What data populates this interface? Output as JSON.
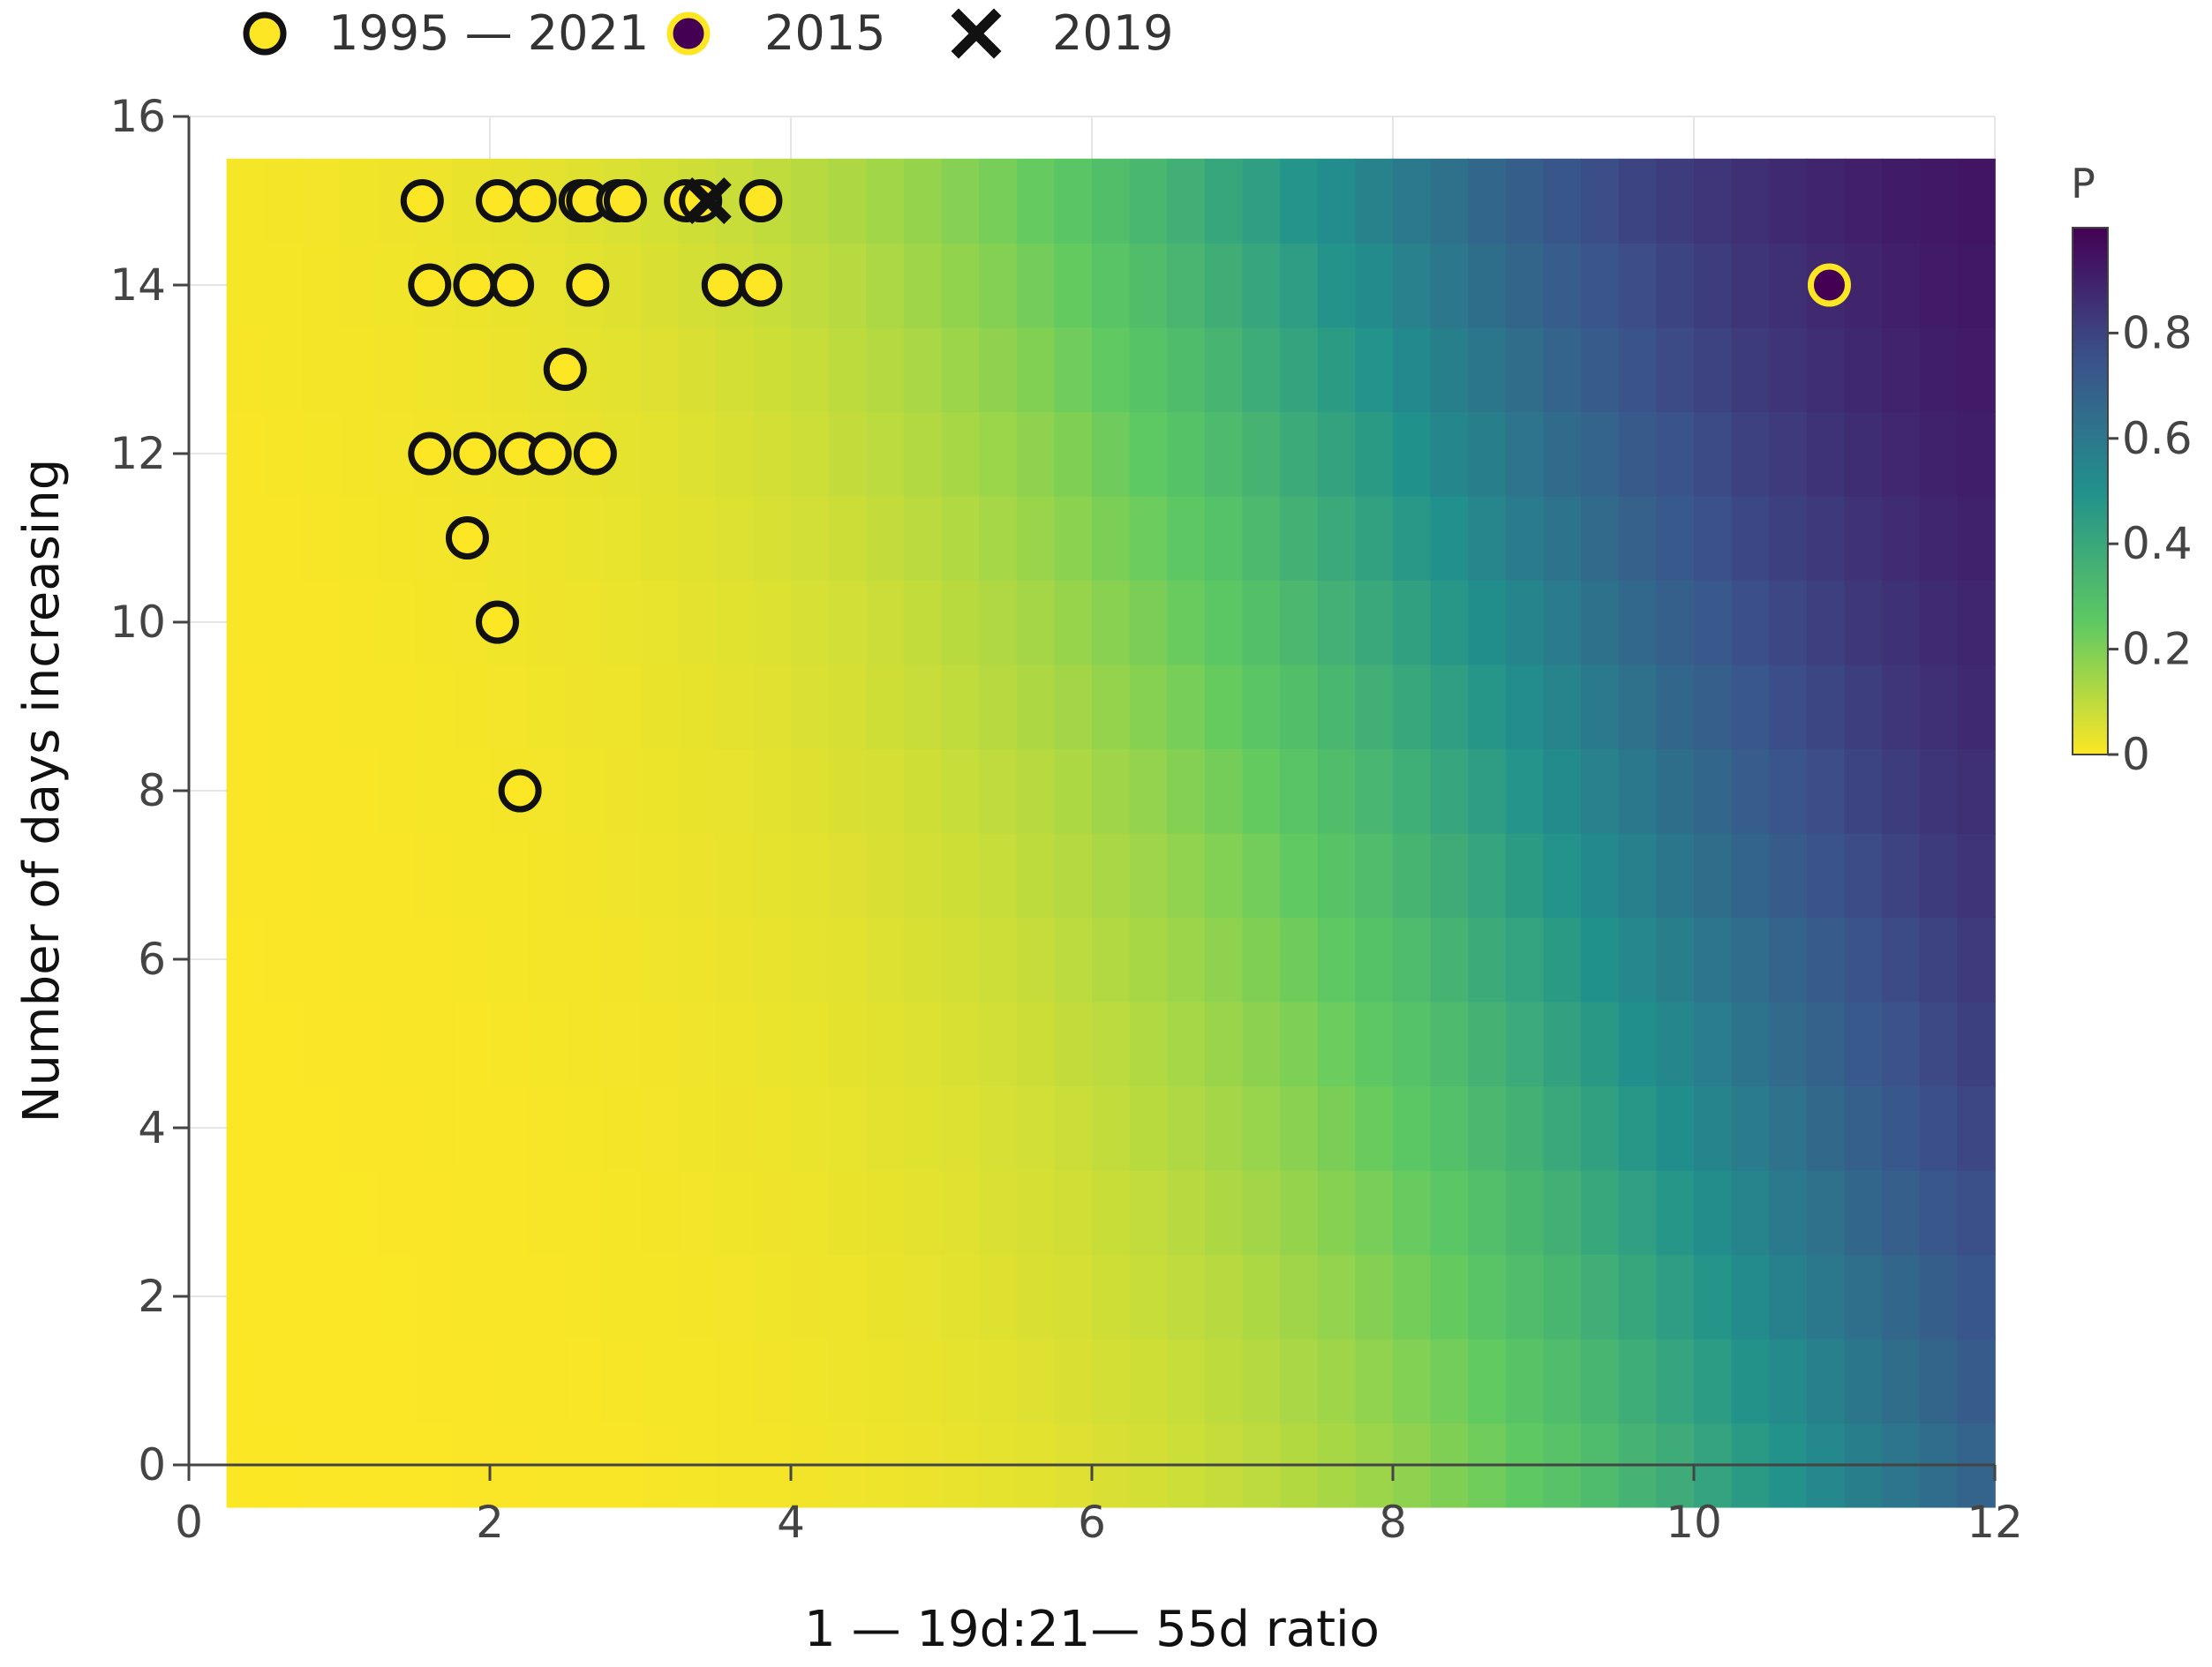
{
  "chart_data": {
    "type": "heatmap",
    "title": "",
    "xlabel": "1 — 19d:21— 55d ratio",
    "ylabel": "Number of days increasing",
    "xlim": [
      0,
      12
    ],
    "ylim": [
      0,
      16
    ],
    "x_ticks": [
      "0",
      "2",
      "4",
      "6",
      "8",
      "10",
      "12"
    ],
    "y_ticks": [
      "0",
      "2",
      "4",
      "6",
      "8",
      "10",
      "12",
      "14",
      "16"
    ],
    "grid": true,
    "heatmap": {
      "x_range": [
        0.25,
        12
      ],
      "y_range": [
        -0.5,
        15.5
      ],
      "colormap": "viridis_r",
      "colorbar_title": "P",
      "colorbar_ticks": [
        "0",
        "0.2",
        "0.4",
        "0.6",
        "0.8"
      ],
      "colorbar_range": [
        0,
        1
      ]
    },
    "legend": {
      "placement": "top",
      "entries": [
        {
          "label": "1995 — 2021",
          "marker": "circle",
          "fill": "#fde725",
          "stroke": "#111111"
        },
        {
          "label": "2015",
          "marker": "circle",
          "fill": "#440154",
          "stroke": "#fde725"
        },
        {
          "label": "2019",
          "marker": "x",
          "fill": "#111111"
        }
      ]
    },
    "series": [
      {
        "name": "1995 — 2021",
        "marker": "circle",
        "points": [
          [
            1.55,
            15
          ],
          [
            2.05,
            15
          ],
          [
            2.3,
            15
          ],
          [
            2.6,
            15
          ],
          [
            2.65,
            15
          ],
          [
            2.85,
            15
          ],
          [
            2.9,
            15
          ],
          [
            3.3,
            15
          ],
          [
            3.4,
            15
          ],
          [
            3.8,
            15
          ],
          [
            1.6,
            14
          ],
          [
            1.9,
            14
          ],
          [
            2.15,
            14
          ],
          [
            2.65,
            14
          ],
          [
            3.55,
            14
          ],
          [
            3.8,
            14
          ],
          [
            2.5,
            13
          ],
          [
            1.6,
            12
          ],
          [
            1.9,
            12
          ],
          [
            2.2,
            12
          ],
          [
            2.4,
            12
          ],
          [
            2.7,
            12
          ],
          [
            1.85,
            11
          ],
          [
            2.05,
            10
          ],
          [
            2.2,
            8
          ]
        ]
      },
      {
        "name": "2015",
        "marker": "circle",
        "points": [
          [
            10.9,
            14
          ]
        ]
      },
      {
        "name": "2019",
        "marker": "x",
        "points": [
          [
            3.45,
            15
          ]
        ]
      }
    ]
  }
}
